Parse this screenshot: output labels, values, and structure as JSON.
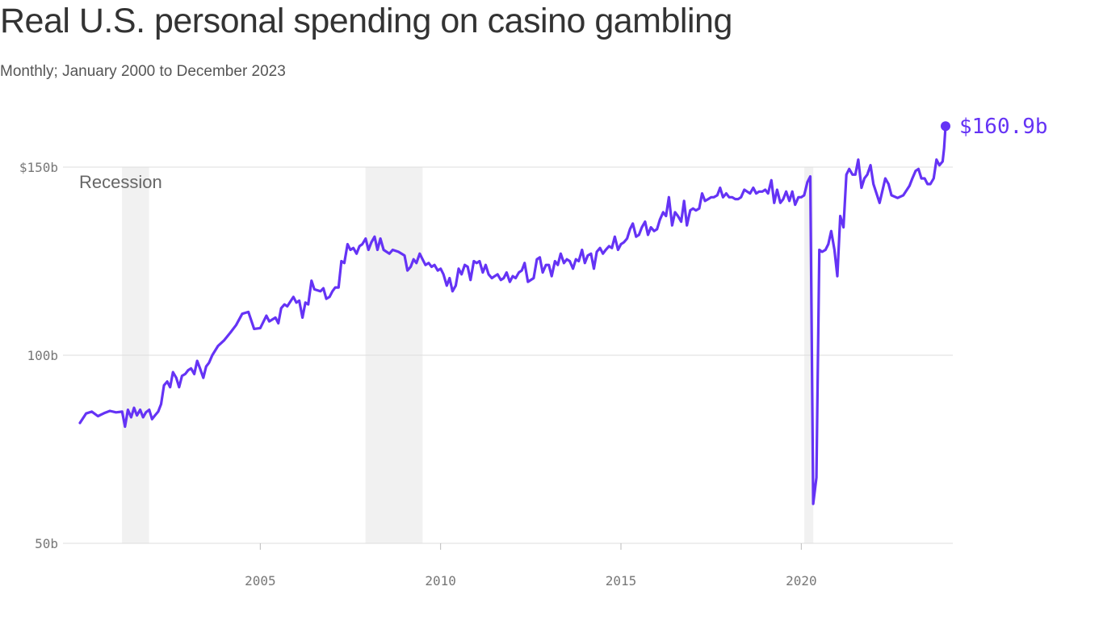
{
  "header": {
    "title": "Real U.S. personal spending on casino gambling",
    "subtitle": "Monthly; January 2000 to December 2023"
  },
  "colors": {
    "line": "#6533f5",
    "recession": "#f1f1f1",
    "grid": "#dddddd"
  },
  "chart_data": {
    "type": "line",
    "title": "Real U.S. personal spending on casino gambling",
    "subtitle": "Monthly; January 2000 to December 2023",
    "x_range": [
      "2000-01",
      "2023-12"
    ],
    "ylim": [
      50,
      150
    ],
    "y_ticks": [
      {
        "value": 150,
        "label": "$150b"
      },
      {
        "value": 100,
        "label": "100b"
      },
      {
        "value": 50,
        "label": "50b"
      }
    ],
    "x_ticks": [
      {
        "value": 2005,
        "label": "2005"
      },
      {
        "value": 2010,
        "label": "2010"
      },
      {
        "value": 2015,
        "label": "2015"
      },
      {
        "value": 2020,
        "label": "2020"
      }
    ],
    "grid": true,
    "recession_label": "Recession",
    "recessions": [
      {
        "start": "2001-03",
        "end": "2001-11"
      },
      {
        "start": "2007-12",
        "end": "2009-06"
      },
      {
        "start": "2020-02",
        "end": "2020-04"
      }
    ],
    "end_label": "$160.9b",
    "series": [
      {
        "values": [
          [
            2000.0,
            82.0
          ],
          [
            2000.17,
            84.5
          ],
          [
            2000.33,
            85.0
          ],
          [
            2000.5,
            83.8
          ],
          [
            2000.67,
            84.6
          ],
          [
            2000.83,
            85.2
          ],
          [
            2001.0,
            84.8
          ],
          [
            2001.17,
            85.0
          ],
          [
            2001.25,
            81.0
          ],
          [
            2001.33,
            85.5
          ],
          [
            2001.42,
            83.5
          ],
          [
            2001.5,
            86.0
          ],
          [
            2001.58,
            84.0
          ],
          [
            2001.67,
            85.5
          ],
          [
            2001.75,
            83.5
          ],
          [
            2001.83,
            84.8
          ],
          [
            2001.92,
            85.5
          ],
          [
            2002.0,
            83.0
          ],
          [
            2002.08,
            84.0
          ],
          [
            2002.17,
            85.0
          ],
          [
            2002.25,
            87.0
          ],
          [
            2002.33,
            92.0
          ],
          [
            2002.42,
            93.0
          ],
          [
            2002.5,
            91.5
          ],
          [
            2002.58,
            95.5
          ],
          [
            2002.67,
            94.0
          ],
          [
            2002.75,
            91.5
          ],
          [
            2002.83,
            94.5
          ],
          [
            2002.92,
            95.0
          ],
          [
            2003.0,
            96.0
          ],
          [
            2003.08,
            96.5
          ],
          [
            2003.17,
            95.0
          ],
          [
            2003.25,
            98.5
          ],
          [
            2003.33,
            96.5
          ],
          [
            2003.42,
            94.0
          ],
          [
            2003.5,
            97.0
          ],
          [
            2003.58,
            98.0
          ],
          [
            2003.67,
            100.0
          ],
          [
            2003.83,
            102.5
          ],
          [
            2004.0,
            104.0
          ],
          [
            2004.17,
            106.0
          ],
          [
            2004.33,
            108.0
          ],
          [
            2004.5,
            111.0
          ],
          [
            2004.67,
            111.5
          ],
          [
            2004.83,
            107.0
          ],
          [
            2005.0,
            107.2
          ],
          [
            2005.17,
            110.5
          ],
          [
            2005.25,
            109.0
          ],
          [
            2005.42,
            110.0
          ],
          [
            2005.5,
            108.5
          ],
          [
            2005.58,
            112.5
          ],
          [
            2005.67,
            113.5
          ],
          [
            2005.75,
            113.0
          ],
          [
            2005.92,
            115.5
          ],
          [
            2006.0,
            114.0
          ],
          [
            2006.08,
            114.5
          ],
          [
            2006.17,
            110.0
          ],
          [
            2006.25,
            114.0
          ],
          [
            2006.33,
            113.5
          ],
          [
            2006.42,
            119.8
          ],
          [
            2006.5,
            117.5
          ],
          [
            2006.67,
            117.0
          ],
          [
            2006.75,
            117.8
          ],
          [
            2006.83,
            115.0
          ],
          [
            2006.92,
            115.5
          ],
          [
            2007.0,
            117.0
          ],
          [
            2007.08,
            118.0
          ],
          [
            2007.17,
            118.0
          ],
          [
            2007.25,
            125.0
          ],
          [
            2007.33,
            124.5
          ],
          [
            2007.42,
            129.5
          ],
          [
            2007.5,
            128.0
          ],
          [
            2007.58,
            128.5
          ],
          [
            2007.67,
            127.0
          ],
          [
            2007.75,
            129.0
          ],
          [
            2007.83,
            129.5
          ],
          [
            2007.92,
            131.0
          ],
          [
            2008.0,
            128.0
          ],
          [
            2008.08,
            130.0
          ],
          [
            2008.17,
            131.5
          ],
          [
            2008.25,
            128.0
          ],
          [
            2008.33,
            131.0
          ],
          [
            2008.42,
            128.0
          ],
          [
            2008.58,
            127.0
          ],
          [
            2008.67,
            128.0
          ],
          [
            2008.83,
            127.5
          ],
          [
            2009.0,
            126.5
          ],
          [
            2009.08,
            122.5
          ],
          [
            2009.17,
            123.5
          ],
          [
            2009.25,
            125.5
          ],
          [
            2009.33,
            124.5
          ],
          [
            2009.42,
            127.0
          ],
          [
            2009.5,
            125.5
          ],
          [
            2009.58,
            124.0
          ],
          [
            2009.67,
            124.5
          ],
          [
            2009.75,
            123.5
          ],
          [
            2009.83,
            124.0
          ],
          [
            2009.92,
            122.5
          ],
          [
            2010.0,
            123.0
          ],
          [
            2010.08,
            121.5
          ],
          [
            2010.17,
            118.5
          ],
          [
            2010.25,
            120.5
          ],
          [
            2010.33,
            117.0
          ],
          [
            2010.42,
            118.5
          ],
          [
            2010.5,
            123.0
          ],
          [
            2010.58,
            121.5
          ],
          [
            2010.67,
            124.0
          ],
          [
            2010.75,
            123.5
          ],
          [
            2010.83,
            120.0
          ],
          [
            2010.92,
            125.0
          ],
          [
            2011.0,
            124.5
          ],
          [
            2011.08,
            125.0
          ],
          [
            2011.17,
            122.0
          ],
          [
            2011.25,
            124.0
          ],
          [
            2011.33,
            121.5
          ],
          [
            2011.42,
            120.5
          ],
          [
            2011.5,
            121.0
          ],
          [
            2011.58,
            121.5
          ],
          [
            2011.67,
            120.0
          ],
          [
            2011.75,
            120.5
          ],
          [
            2011.83,
            122.0
          ],
          [
            2011.92,
            119.5
          ],
          [
            2012.0,
            121.0
          ],
          [
            2012.08,
            120.5
          ],
          [
            2012.17,
            122.0
          ],
          [
            2012.25,
            122.5
          ],
          [
            2012.33,
            124.5
          ],
          [
            2012.42,
            119.5
          ],
          [
            2012.58,
            120.5
          ],
          [
            2012.67,
            125.5
          ],
          [
            2012.75,
            126.0
          ],
          [
            2012.83,
            122.0
          ],
          [
            2012.92,
            124.0
          ],
          [
            2013.0,
            124.0
          ],
          [
            2013.08,
            121.0
          ],
          [
            2013.17,
            125.0
          ],
          [
            2013.25,
            124.0
          ],
          [
            2013.33,
            127.0
          ],
          [
            2013.42,
            124.5
          ],
          [
            2013.5,
            125.5
          ],
          [
            2013.58,
            125.0
          ],
          [
            2013.67,
            123.0
          ],
          [
            2013.75,
            125.5
          ],
          [
            2013.83,
            125.0
          ],
          [
            2013.92,
            128.0
          ],
          [
            2014.0,
            124.5
          ],
          [
            2014.08,
            126.5
          ],
          [
            2014.17,
            127.0
          ],
          [
            2014.25,
            123.0
          ],
          [
            2014.33,
            127.5
          ],
          [
            2014.42,
            128.5
          ],
          [
            2014.5,
            127.0
          ],
          [
            2014.58,
            128.0
          ],
          [
            2014.67,
            129.0
          ],
          [
            2014.75,
            128.5
          ],
          [
            2014.83,
            131.5
          ],
          [
            2014.92,
            128.0
          ],
          [
            2015.0,
            129.5
          ],
          [
            2015.08,
            130.0
          ],
          [
            2015.17,
            131.0
          ],
          [
            2015.25,
            133.5
          ],
          [
            2015.33,
            135.0
          ],
          [
            2015.42,
            131.5
          ],
          [
            2015.5,
            132.0
          ],
          [
            2015.58,
            134.0
          ],
          [
            2015.67,
            135.5
          ],
          [
            2015.75,
            132.0
          ],
          [
            2015.83,
            134.0
          ],
          [
            2015.92,
            133.0
          ],
          [
            2016.0,
            133.5
          ],
          [
            2016.08,
            136.0
          ],
          [
            2016.17,
            138.0
          ],
          [
            2016.25,
            137.0
          ],
          [
            2016.33,
            142.0
          ],
          [
            2016.42,
            134.5
          ],
          [
            2016.5,
            138.0
          ],
          [
            2016.58,
            137.0
          ],
          [
            2016.67,
            135.5
          ],
          [
            2016.75,
            141.0
          ],
          [
            2016.83,
            134.5
          ],
          [
            2016.92,
            138.5
          ],
          [
            2017.0,
            139.0
          ],
          [
            2017.08,
            138.5
          ],
          [
            2017.17,
            139.0
          ],
          [
            2017.25,
            143.0
          ],
          [
            2017.33,
            141.0
          ],
          [
            2017.42,
            141.5
          ],
          [
            2017.5,
            142.0
          ],
          [
            2017.58,
            142.0
          ],
          [
            2017.67,
            142.5
          ],
          [
            2017.75,
            144.5
          ],
          [
            2017.83,
            142.0
          ],
          [
            2017.92,
            143.0
          ],
          [
            2018.0,
            142.0
          ],
          [
            2018.08,
            142.0
          ],
          [
            2018.17,
            141.5
          ],
          [
            2018.25,
            141.5
          ],
          [
            2018.33,
            142.0
          ],
          [
            2018.42,
            144.0
          ],
          [
            2018.5,
            143.5
          ],
          [
            2018.58,
            143.0
          ],
          [
            2018.67,
            144.5
          ],
          [
            2018.75,
            143.0
          ],
          [
            2018.83,
            143.5
          ],
          [
            2018.92,
            143.5
          ],
          [
            2019.0,
            144.0
          ],
          [
            2019.08,
            143.0
          ],
          [
            2019.17,
            146.5
          ],
          [
            2019.25,
            140.5
          ],
          [
            2019.33,
            144.0
          ],
          [
            2019.42,
            140.5
          ],
          [
            2019.5,
            141.5
          ],
          [
            2019.58,
            143.5
          ],
          [
            2019.67,
            141.0
          ],
          [
            2019.75,
            143.5
          ],
          [
            2019.83,
            140.0
          ],
          [
            2019.92,
            142.0
          ],
          [
            2020.0,
            142.0
          ],
          [
            2020.08,
            142.5
          ],
          [
            2020.17,
            146.0
          ],
          [
            2020.25,
            147.5
          ],
          [
            2020.33,
            60.5
          ],
          [
            2020.42,
            67.5
          ],
          [
            2020.5,
            128.0
          ],
          [
            2020.58,
            127.5
          ],
          [
            2020.67,
            128.0
          ],
          [
            2020.75,
            129.5
          ],
          [
            2020.83,
            133.0
          ],
          [
            2020.92,
            128.0
          ],
          [
            2021.0,
            121.0
          ],
          [
            2021.08,
            137.0
          ],
          [
            2021.17,
            134.0
          ],
          [
            2021.25,
            148.0
          ],
          [
            2021.33,
            149.5
          ],
          [
            2021.42,
            148.0
          ],
          [
            2021.5,
            148.0
          ],
          [
            2021.58,
            152.0
          ],
          [
            2021.67,
            144.5
          ],
          [
            2021.75,
            147.0
          ],
          [
            2021.83,
            148.0
          ],
          [
            2021.92,
            150.5
          ],
          [
            2022.0,
            145.5
          ],
          [
            2022.17,
            140.5
          ],
          [
            2022.33,
            147.0
          ],
          [
            2022.42,
            145.5
          ],
          [
            2022.5,
            142.5
          ],
          [
            2022.67,
            141.8
          ],
          [
            2022.83,
            142.5
          ],
          [
            2023.0,
            145.0
          ],
          [
            2023.08,
            147.0
          ],
          [
            2023.17,
            149.0
          ],
          [
            2023.25,
            149.5
          ],
          [
            2023.33,
            147.0
          ],
          [
            2023.42,
            147.0
          ],
          [
            2023.5,
            145.5
          ],
          [
            2023.58,
            145.5
          ],
          [
            2023.67,
            147.0
          ],
          [
            2023.75,
            152.0
          ],
          [
            2023.83,
            150.5
          ],
          [
            2023.92,
            151.5
          ],
          [
            2023.96,
            155.0
          ],
          [
            2024.0,
            160.9
          ]
        ]
      }
    ]
  }
}
